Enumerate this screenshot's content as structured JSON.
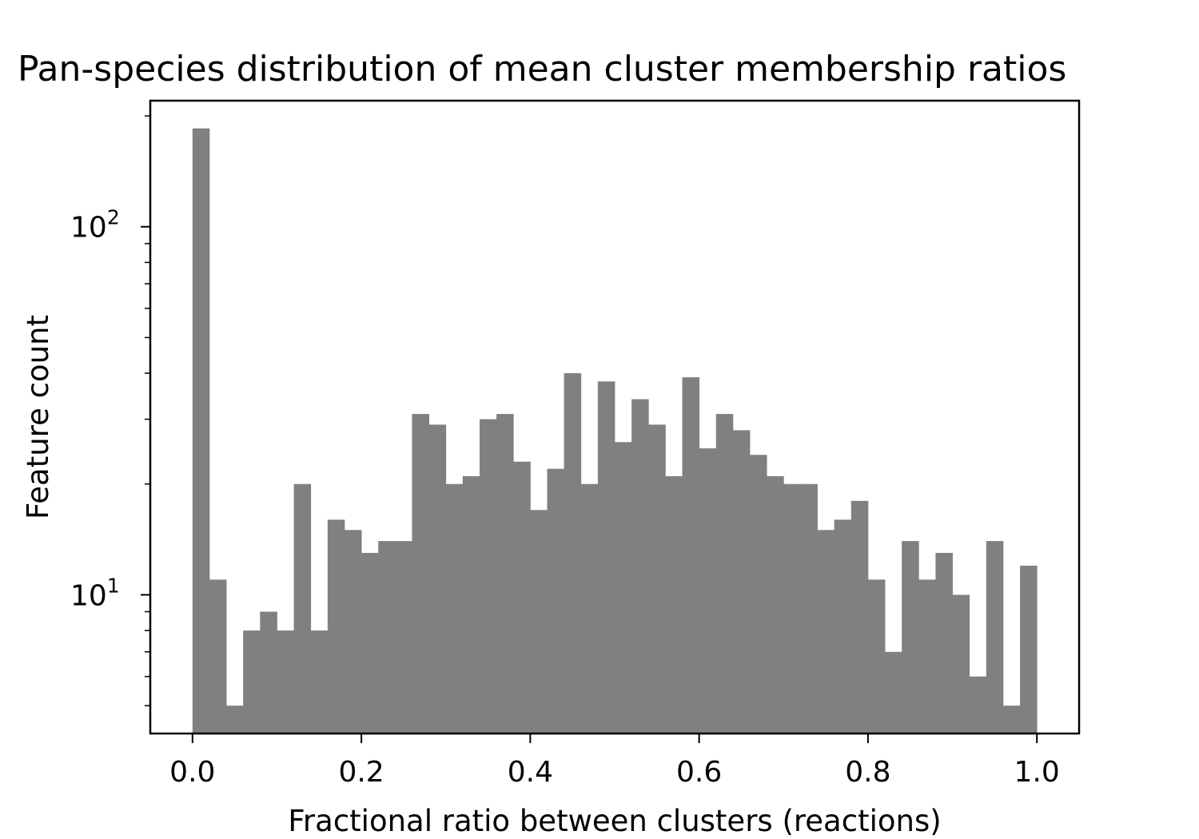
{
  "chart_data": {
    "type": "bar",
    "title": "Pan-species distribution of mean cluster membership ratios",
    "xlabel": "Fractional ratio between clusters (reactions)",
    "ylabel": "Feature count",
    "yscale": "log",
    "grid": false,
    "xlim": [
      -0.05,
      1.05
    ],
    "ylim": [
      4.2,
      220
    ],
    "xticks": [
      0.0,
      0.2,
      0.4,
      0.6,
      0.8,
      1.0
    ],
    "xtick_labels": [
      "0.0",
      "0.2",
      "0.4",
      "0.6",
      "0.8",
      "1.0"
    ],
    "yticks": [
      {
        "value": 10,
        "base": "10",
        "exp": "1"
      },
      {
        "value": 100,
        "base": "10",
        "exp": "2"
      }
    ],
    "bar_color": "#808080",
    "bin_start": 0.0,
    "bin_end": 1.0,
    "counts": [
      185,
      11,
      5,
      8,
      9,
      8,
      20,
      8,
      16,
      15,
      13,
      14,
      14,
      31,
      29,
      20,
      21,
      30,
      31,
      23,
      17,
      22,
      40,
      20,
      38,
      26,
      34,
      29,
      21,
      39,
      25,
      31,
      28,
      24,
      21,
      20,
      20,
      15,
      16,
      18,
      11,
      7,
      14,
      11,
      13,
      10,
      6,
      14,
      5,
      12
    ]
  }
}
